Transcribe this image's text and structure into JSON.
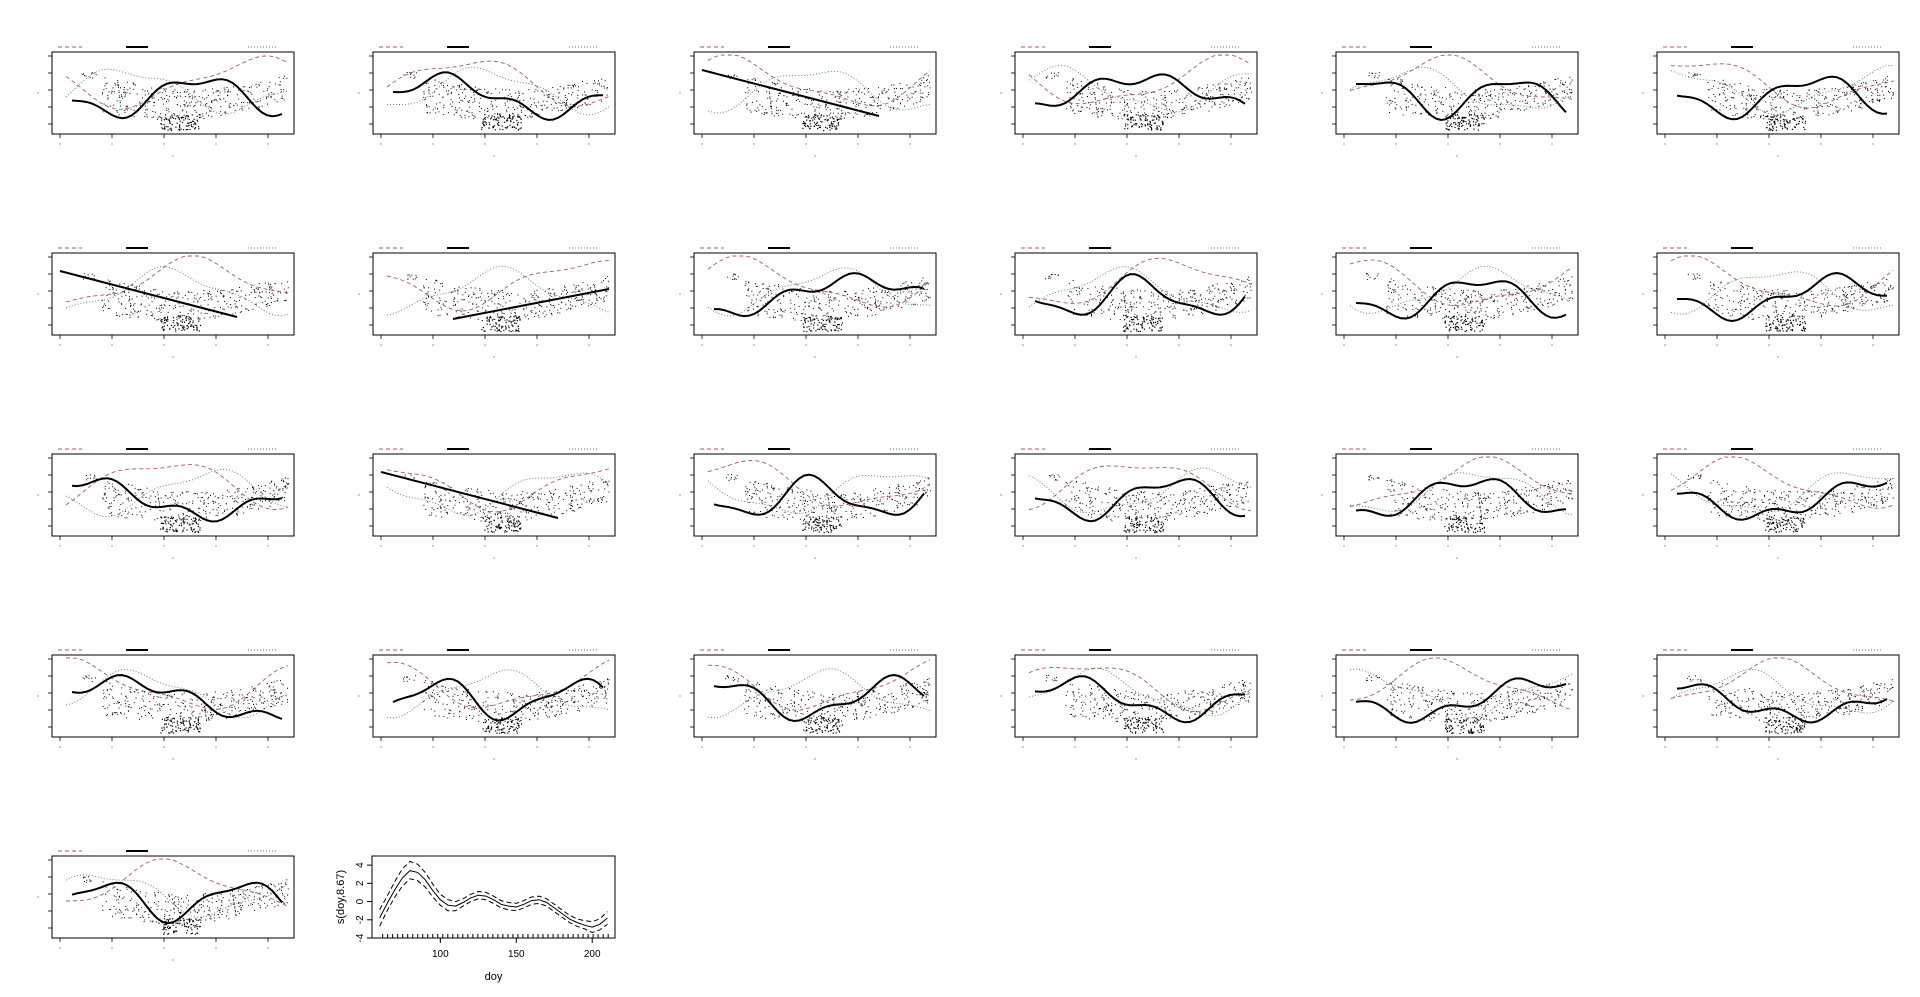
{
  "figure": {
    "panel_grid": {
      "rows": 5,
      "cols": 6,
      "panels_shown": 26
    },
    "colors": {
      "ink": "#000000",
      "dashed_band": "#b0555f",
      "dotted_band": "#3f8f3f",
      "points": "#000000"
    }
  },
  "smooth_panels": [
    {
      "index": 1,
      "pattern": "irregular contours"
    },
    {
      "index": 2,
      "pattern": "single curve"
    },
    {
      "index": 3,
      "pattern": "straight line, descending"
    },
    {
      "index": 4,
      "pattern": "steep line"
    },
    {
      "index": 5,
      "pattern": "two parallel lines"
    },
    {
      "index": 6,
      "pattern": "closed loop"
    },
    {
      "index": 7,
      "pattern": "straight line, descending"
    },
    {
      "index": 8,
      "pattern": "straight line, ascending"
    },
    {
      "index": 9,
      "pattern": "steep line"
    },
    {
      "index": 10,
      "pattern": "curve with short segment"
    },
    {
      "index": 11,
      "pattern": "three parallel lines"
    },
    {
      "index": 12,
      "pattern": "two parallel lines"
    },
    {
      "index": 13,
      "pattern": "curves"
    },
    {
      "index": 14,
      "pattern": "straight line, descending"
    },
    {
      "index": 15,
      "pattern": "multiple contours"
    },
    {
      "index": 16,
      "pattern": "contours with closed loop"
    },
    {
      "index": 17,
      "pattern": "many contours"
    },
    {
      "index": 18,
      "pattern": "closed loops"
    },
    {
      "index": 19,
      "pattern": "contours with loop"
    },
    {
      "index": 20,
      "pattern": "multiple contours"
    },
    {
      "index": 21,
      "pattern": "parallel wavy contours"
    },
    {
      "index": 22,
      "pattern": "curve"
    },
    {
      "index": 23,
      "pattern": "parallel wavy contours"
    },
    {
      "index": 24,
      "pattern": "single curve"
    },
    {
      "index": 25,
      "pattern": "dense wavy contours"
    }
  ],
  "chart_data": {
    "type": "line",
    "title": "",
    "xlabel": "doy",
    "ylabel": "s(doy,8.67)",
    "xlim": [
      55,
      215
    ],
    "ylim": [
      -4,
      5
    ],
    "xticks": [
      100,
      150,
      200
    ],
    "yticks": [
      -4,
      -2,
      0,
      2,
      4
    ],
    "grid": false,
    "series": [
      {
        "style": "solid",
        "x": [
          60,
          65,
          70,
          75,
          80,
          85,
          90,
          95,
          100,
          105,
          110,
          115,
          120,
          125,
          130,
          135,
          140,
          145,
          150,
          155,
          160,
          165,
          170,
          175,
          180,
          185,
          190,
          195,
          200,
          205,
          210
        ],
        "values": [
          -1.8,
          -0.2,
          1.3,
          2.6,
          3.4,
          3.2,
          2.4,
          1.2,
          0.2,
          -0.4,
          -0.5,
          -0.1,
          0.4,
          0.7,
          0.6,
          0.2,
          -0.3,
          -0.5,
          -0.6,
          -0.3,
          0.1,
          0.2,
          -0.1,
          -0.7,
          -1.3,
          -1.9,
          -2.3,
          -2.6,
          -2.8,
          -2.5,
          -1.8
        ]
      },
      {
        "style": "dashed",
        "x": [
          60,
          65,
          70,
          75,
          80,
          85,
          90,
          95,
          100,
          105,
          110,
          115,
          120,
          125,
          130,
          135,
          140,
          145,
          150,
          155,
          160,
          165,
          170,
          175,
          180,
          185,
          190,
          195,
          200,
          205,
          210
        ],
        "values": [
          -0.9,
          0.6,
          2.2,
          3.6,
          4.4,
          4.1,
          3.2,
          1.9,
          0.8,
          0.2,
          0.0,
          0.3,
          0.8,
          1.1,
          1.0,
          0.6,
          0.1,
          -0.1,
          -0.2,
          0.1,
          0.5,
          0.6,
          0.3,
          -0.3,
          -0.9,
          -1.5,
          -1.9,
          -2.1,
          -2.2,
          -1.9,
          -1.1
        ]
      },
      {
        "style": "dashed",
        "x": [
          60,
          65,
          70,
          75,
          80,
          85,
          90,
          95,
          100,
          105,
          110,
          115,
          120,
          125,
          130,
          135,
          140,
          145,
          150,
          155,
          160,
          165,
          170,
          175,
          180,
          185,
          190,
          195,
          200,
          205,
          210
        ],
        "values": [
          -2.7,
          -1.0,
          0.5,
          1.7,
          2.5,
          2.3,
          1.6,
          0.5,
          -0.4,
          -1.0,
          -1.0,
          -0.5,
          0.0,
          0.3,
          0.2,
          -0.2,
          -0.7,
          -0.9,
          -1.0,
          -0.7,
          -0.3,
          -0.2,
          -0.5,
          -1.1,
          -1.7,
          -2.3,
          -2.7,
          -3.0,
          -3.4,
          -3.1,
          -2.5
        ]
      }
    ]
  }
}
